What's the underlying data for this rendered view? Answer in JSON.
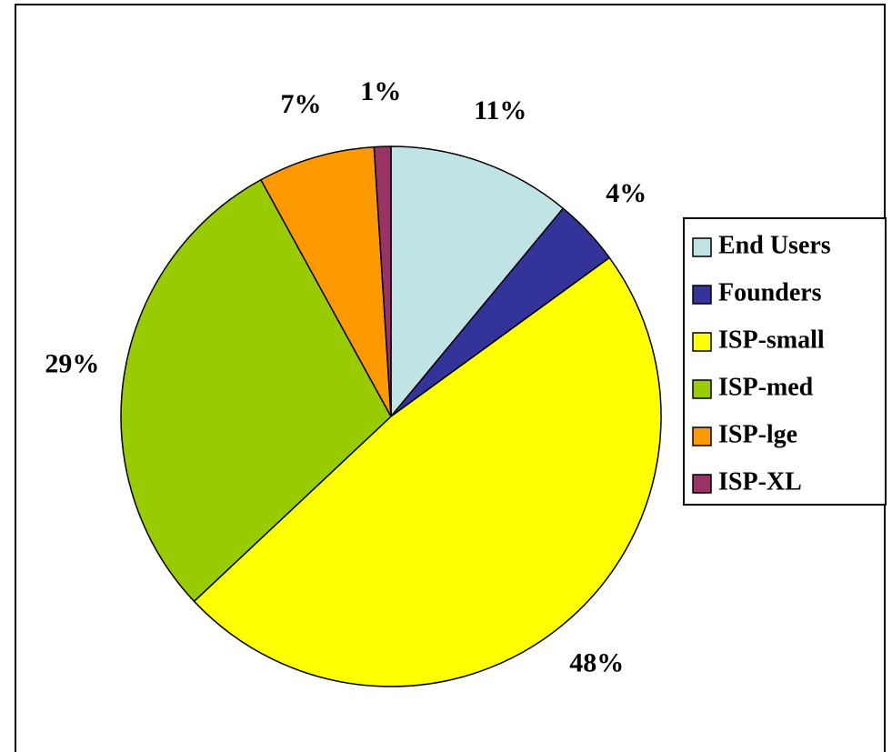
{
  "chart_data": {
    "type": "pie",
    "categories": [
      "End Users",
      "Founders",
      "ISP-small",
      "ISP-med",
      "ISP-lge",
      "ISP-XL"
    ],
    "values": [
      11,
      4,
      48,
      29,
      7,
      1
    ],
    "value_labels": [
      "11%",
      "4%",
      "48%",
      "29%",
      "7%",
      "1%"
    ],
    "colors": [
      "#c0e4e4",
      "#333399",
      "#ffff00",
      "#99cc00",
      "#ff9900",
      "#993366"
    ],
    "legend": "right"
  }
}
